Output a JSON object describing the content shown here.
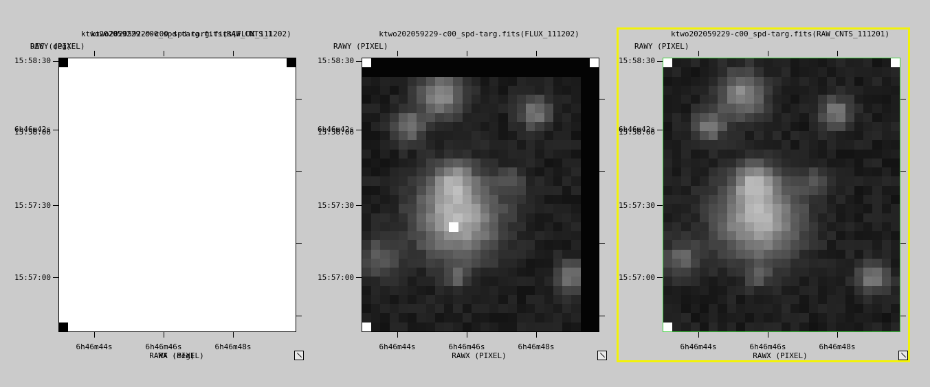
{
  "frames": [
    {
      "id": "frame1",
      "titles": [
        "ktwo202059229-c00_spd-targ.fits(RAW_CNTS_1",
        "ktwo202059229-c00_spd-targ.fits(FLUX_111202)"
      ],
      "ylabel_overlap": [
        "RAWY (PIXEL)",
        "DEC (deg)"
      ],
      "xlabel_overlap": [
        "RAWX (PIXEL)",
        "RA (deg)"
      ],
      "dec_ticks": [
        "15:58:30",
        "15:58:06",
        "15:57:30",
        "15:57:00"
      ],
      "dec_extra": "6h46m42s",
      "ra_ticks": [
        "6h46m44s",
        "6h46m46s",
        "6h46m48s"
      ],
      "image": "white"
    },
    {
      "id": "frame2",
      "title": "ktwo202059229-c00_spd-targ.fits(FLUX_111202)",
      "ylabel": "RAWY (PIXEL)",
      "xlabel": "RAWX (PIXEL)",
      "dec_ticks": [
        "15:58:30",
        "15:58:06",
        "15:57:30",
        "15:57:00"
      ],
      "dec_extra": "6h46m42s",
      "ra_ticks": [
        "6h46m44s",
        "6h46m46s",
        "6h46m48s"
      ],
      "image": "flux"
    },
    {
      "id": "frame3",
      "title": "ktwo202059229-c00_spd-targ.fits(RAW_CNTS_111201)",
      "ylabel": "RAWY (PIXEL)",
      "xlabel": "RAWX (PIXEL)",
      "dec_ticks": [
        "15:58:30",
        "15:58:06",
        "15:57:30",
        "15:57:00"
      ],
      "dec_extra": "6h46m42s",
      "ra_ticks": [
        "6h46m44s",
        "6h46m46s",
        "6h46m48s"
      ],
      "image": "raw",
      "selected": true
    }
  ],
  "colors": {
    "background": "#cbcbcb",
    "selection": "#f2f20a",
    "plot_border_active": "#3ad03a"
  }
}
